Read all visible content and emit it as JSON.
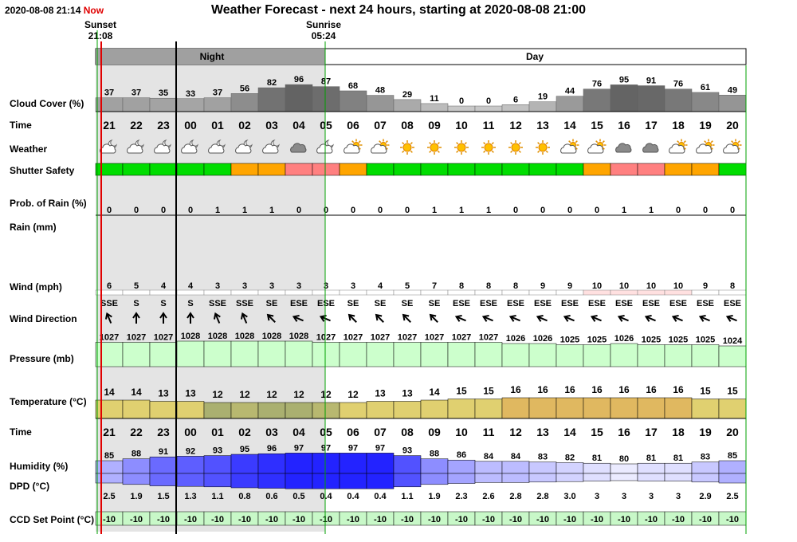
{
  "header": {
    "timestamp": "2020-08-08 21:14",
    "now_label": "Now",
    "title": "Weather Forecast - next 24 hours, starting at 2020-08-08 21:00"
  },
  "sun": {
    "sunset_label": "Sunset",
    "sunset_time": "21:08",
    "sunrise_label": "Sunrise",
    "sunrise_time": "05:24"
  },
  "period_labels": {
    "night": "Night",
    "day": "Day"
  },
  "row_labels": {
    "cloud": "Cloud Cover (%)",
    "time": "Time",
    "weather": "Weather",
    "shutter": "Shutter Safety",
    "rain_prob": "Prob. of Rain (%)",
    "rain": "Rain (mm)",
    "wind": "Wind (mph)",
    "wind_dir": "Wind Direction",
    "pressure": "Pressure (mb)",
    "temperature": "Temperature (°C)",
    "time2": "Time",
    "humidity": "Humidity (%)",
    "dpd": "DPD (°C)",
    "ccd": "CCD Set Point (°C)"
  },
  "forecast": {
    "hours": [
      "21",
      "22",
      "23",
      "00",
      "01",
      "02",
      "03",
      "04",
      "05",
      "06",
      "07",
      "08",
      "09",
      "10",
      "11",
      "12",
      "13",
      "14",
      "15",
      "16",
      "17",
      "18",
      "19",
      "20"
    ],
    "cloud_cover": [
      37,
      37,
      35,
      33,
      37,
      56,
      82,
      96,
      87,
      68,
      48,
      29,
      11,
      0,
      0,
      6,
      19,
      44,
      76,
      95,
      91,
      76,
      61,
      49
    ],
    "weather_icons": [
      "cloud-moon-icon",
      "cloud-moon-icon",
      "cloud-moon-icon",
      "cloud-moon-icon",
      "cloud-moon-icon",
      "cloud-moon-icon",
      "cloud-moon-icon",
      "dark-cloud-icon",
      "cloud-moon-icon",
      "sun-cloud-icon",
      "sun-cloud-icon",
      "sun-icon",
      "sun-icon",
      "sun-icon",
      "sun-icon",
      "sun-icon",
      "sun-icon",
      "sun-cloud-icon",
      "sun-cloud-icon",
      "dark-cloud-icon",
      "dark-cloud-icon",
      "sun-cloud-icon",
      "sun-cloud-icon",
      "sun-cloud-icon"
    ],
    "shutter_safety": [
      "safe",
      "safe",
      "safe",
      "safe",
      "safe",
      "caution",
      "caution",
      "unsafe",
      "unsafe",
      "caution",
      "safe",
      "safe",
      "safe",
      "safe",
      "safe",
      "safe",
      "safe",
      "safe",
      "caution",
      "unsafe",
      "unsafe",
      "caution",
      "caution",
      "safe"
    ],
    "rain_probability": [
      0,
      0,
      0,
      0,
      1,
      1,
      1,
      0,
      0,
      0,
      0,
      0,
      1,
      1,
      1,
      0,
      0,
      0,
      0,
      1,
      1,
      0,
      0,
      0
    ],
    "wind_mph": [
      6,
      5,
      4,
      4,
      3,
      3,
      3,
      3,
      3,
      3,
      4,
      5,
      7,
      8,
      8,
      8,
      9,
      9,
      10,
      10,
      10,
      10,
      9,
      8
    ],
    "wind_direction": [
      "SSE",
      "S",
      "S",
      "S",
      "SSE",
      "SSE",
      "SE",
      "ESE",
      "ESE",
      "SE",
      "SE",
      "SE",
      "SE",
      "ESE",
      "ESE",
      "ESE",
      "ESE",
      "ESE",
      "ESE",
      "ESE",
      "ESE",
      "ESE",
      "ESE",
      "ESE"
    ],
    "pressure_mb": [
      1027,
      1027,
      1027,
      1028,
      1028,
      1028,
      1028,
      1028,
      1027,
      1027,
      1027,
      1027,
      1027,
      1027,
      1027,
      1026,
      1026,
      1025,
      1025,
      1026,
      1025,
      1025,
      1025,
      1024
    ],
    "temperature_c": [
      14,
      14,
      13,
      13,
      12,
      12,
      12,
      12,
      12,
      12,
      13,
      13,
      14,
      15,
      15,
      16,
      16,
      16,
      16,
      16,
      16,
      16,
      15,
      15
    ],
    "humidity_pct": [
      85,
      88,
      91,
      92,
      93,
      95,
      96,
      97,
      97,
      97,
      97,
      93,
      88,
      86,
      84,
      84,
      83,
      82,
      81,
      80,
      81,
      81,
      83,
      85
    ],
    "dpd_c": [
      "2.5",
      "1.9",
      "1.5",
      "1.3",
      "1.1",
      "0.8",
      "0.6",
      "0.5",
      "0.4",
      "0.4",
      "0.4",
      "1.1",
      "1.9",
      "2.3",
      "2.6",
      "2.8",
      "2.8",
      "3.0",
      "3",
      "3",
      "3",
      "3",
      "2.9",
      "2.5"
    ],
    "ccd_set_point_c": [
      -10,
      -10,
      -10,
      -10,
      -10,
      -10,
      -10,
      -10,
      -10,
      -10,
      -10,
      -10,
      -10,
      -10,
      -10,
      -10,
      -10,
      -10,
      -10,
      -10,
      -10,
      -10,
      -10,
      -10
    ]
  },
  "colors": {
    "safe": "#00dd00",
    "caution": "#ffa500",
    "unsafe": "#ff8080",
    "night_shade": "#e4e4e4",
    "pressure_fill": "#ccffcc",
    "ccd_fill": "#c8f8c8",
    "sunset_line": "#e00000",
    "sunrise_line": "#00a000",
    "now_line": "#000000"
  }
}
